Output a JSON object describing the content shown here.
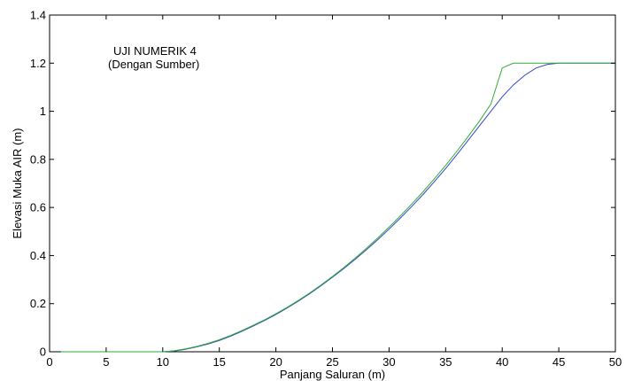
{
  "chart_data": {
    "type": "line",
    "title": "",
    "xlabel": "Panjang Saluran (m)",
    "ylabel": "Elevasi Muka AIR (m)",
    "xlim": [
      0,
      50
    ],
    "ylim": [
      0,
      1.4
    ],
    "xticks": [
      0,
      5,
      10,
      15,
      20,
      25,
      30,
      35,
      40,
      45,
      50
    ],
    "xtick_labels": [
      "0",
      "5",
      "10",
      "15",
      "20",
      "25",
      "30",
      "35",
      "40",
      "45",
      "50"
    ],
    "yticks": [
      0,
      0.2,
      0.4,
      0.6,
      0.8,
      1.0,
      1.2,
      1.4
    ],
    "ytick_labels": [
      "0",
      "0.2",
      "0.4",
      "0.6",
      "0.8",
      "1",
      "1.2",
      "1.4"
    ],
    "grid": false,
    "annotations": [
      {
        "text": "UJI NUMERIK 4"
      },
      {
        "text": "(Dengan Sumber)"
      }
    ],
    "series": [
      {
        "color": "#3344cc",
        "x": [
          1,
          10,
          11,
          12,
          13,
          14,
          15,
          16,
          17,
          18,
          19,
          20,
          21,
          22,
          23,
          24,
          25,
          26,
          27,
          28,
          29,
          30,
          31,
          32,
          33,
          34,
          35,
          36,
          37,
          38,
          39,
          40,
          41,
          42,
          43,
          44,
          45,
          50
        ],
        "y": [
          0,
          0,
          0.003,
          0.01,
          0.02,
          0.032,
          0.047,
          0.065,
          0.085,
          0.107,
          0.13,
          0.155,
          0.182,
          0.211,
          0.242,
          0.275,
          0.31,
          0.346,
          0.384,
          0.424,
          0.466,
          0.51,
          0.556,
          0.604,
          0.654,
          0.707,
          0.762,
          0.82,
          0.88,
          0.94,
          1.0,
          1.06,
          1.11,
          1.15,
          1.18,
          1.195,
          1.2,
          1.2
        ]
      },
      {
        "color": "#33aa33",
        "x": [
          1,
          10,
          11,
          12,
          13,
          14,
          15,
          16,
          17,
          18,
          19,
          20,
          21,
          22,
          23,
          24,
          25,
          26,
          27,
          28,
          29,
          30,
          31,
          32,
          33,
          34,
          35,
          36,
          37,
          38,
          39,
          40,
          41,
          50
        ],
        "y": [
          0,
          0,
          0.004,
          0.012,
          0.022,
          0.035,
          0.05,
          0.068,
          0.088,
          0.11,
          0.133,
          0.158,
          0.185,
          0.214,
          0.245,
          0.278,
          0.313,
          0.35,
          0.389,
          0.43,
          0.473,
          0.518,
          0.565,
          0.614,
          0.665,
          0.719,
          0.775,
          0.834,
          0.896,
          0.96,
          1.03,
          1.18,
          1.2,
          1.2
        ]
      }
    ]
  }
}
